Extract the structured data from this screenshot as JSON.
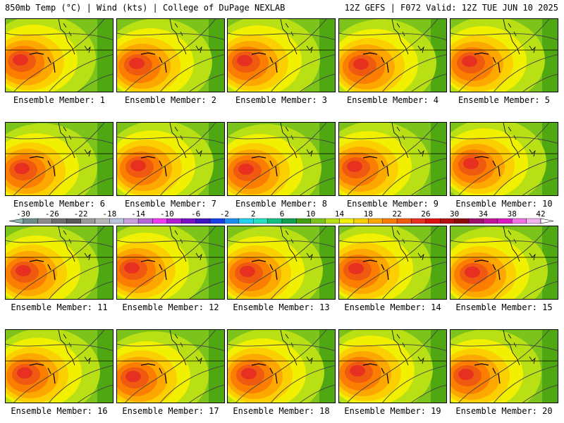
{
  "header": {
    "left_title": "850mb Temp (°C) | Wind (kts) | College of DuPage NEXLAB",
    "right_title": "12Z GEFS | F072 Valid: 12Z TUE JUN 10 2025"
  },
  "colorbar": {
    "tick_labels": [
      "-30",
      "-26",
      "-22",
      "-18",
      "-14",
      "-10",
      "-6",
      "-2",
      "2",
      "6",
      "10",
      "14",
      "18",
      "22",
      "26",
      "30",
      "34",
      "38",
      "42"
    ],
    "colors": [
      "#6d8c8a",
      "#8b8b8b",
      "#6e6e6e",
      "#5a5a5a",
      "#9a9a9a",
      "#b7b7b7",
      "#b9c4de",
      "#c7a0dc",
      "#b468d6",
      "#f03cf0",
      "#b01ed2",
      "#7a10c8",
      "#3c14c0",
      "#1a3ee6",
      "#1a8ef0",
      "#22d2f0",
      "#22e0c0",
      "#10c080",
      "#10a050",
      "#44a010",
      "#7cc41c",
      "#b8e014",
      "#f0f000",
      "#fcd000",
      "#fca800",
      "#fc7e00",
      "#f05a10",
      "#e83020",
      "#dc1010",
      "#b41010",
      "#8c0a0a",
      "#a0106a",
      "#c41496",
      "#dc18c0",
      "#f070e6",
      "#f0b4f0"
    ]
  },
  "members": [
    {
      "label": "Ensemble Member: 1"
    },
    {
      "label": "Ensemble Member: 2"
    },
    {
      "label": "Ensemble Member: 3"
    },
    {
      "label": "Ensemble Member: 4"
    },
    {
      "label": "Ensemble Member: 5"
    },
    {
      "label": "Ensemble Member: 6"
    },
    {
      "label": "Ensemble Member: 7"
    },
    {
      "label": "Ensemble Member: 8"
    },
    {
      "label": "Ensemble Member: 9"
    },
    {
      "label": "Ensemble Member: 10"
    },
    {
      "label": "Ensemble Member: 11"
    },
    {
      "label": "Ensemble Member: 12"
    },
    {
      "label": "Ensemble Member: 13"
    },
    {
      "label": "Ensemble Member: 14"
    },
    {
      "label": "Ensemble Member: 15"
    },
    {
      "label": "Ensemble Member: 16"
    },
    {
      "label": "Ensemble Member: 17"
    },
    {
      "label": "Ensemble Member: 18"
    },
    {
      "label": "Ensemble Member: 19"
    },
    {
      "label": "Ensemble Member: 20"
    }
  ]
}
